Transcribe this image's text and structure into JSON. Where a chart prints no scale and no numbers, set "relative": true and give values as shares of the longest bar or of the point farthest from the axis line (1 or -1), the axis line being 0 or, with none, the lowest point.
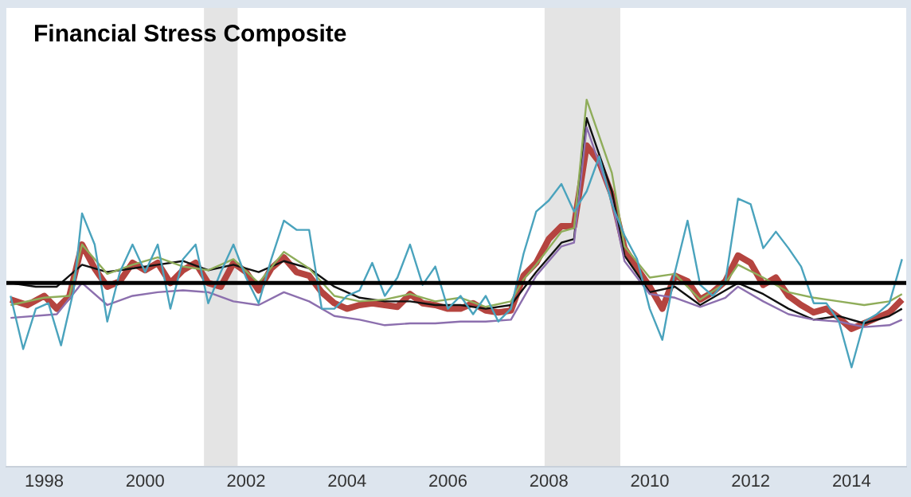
{
  "chart_data": {
    "type": "line",
    "title": "Financial Stress Composite",
    "relative": true,
    "legend": false,
    "marker": "none",
    "line_style": "solid",
    "xlim": [
      "1997-04",
      "2015-02"
    ],
    "xticks": [
      "1998",
      "2000",
      "2002",
      "2004",
      "2006",
      "2008",
      "2010",
      "2012",
      "2014"
    ],
    "bands": [
      {
        "axis": "x",
        "from": "2001-03",
        "to": "2001-11",
        "color": "#e4e4e4"
      },
      {
        "axis": "x",
        "from": "2007-12",
        "to": "2009-06",
        "color": "#e4e4e4"
      }
    ],
    "ref_lines": [
      {
        "axis": "y",
        "value": 0,
        "color": "#000000"
      }
    ],
    "series": [
      {
        "color": "#4aa3bd",
        "x": [
          "1997-05",
          "1997-08",
          "1997-11",
          "1998-02",
          "1998-05",
          "1998-08",
          "1998-10",
          "1999-01",
          "1999-04",
          "1999-07",
          "1999-10",
          "2000-01",
          "2000-04",
          "2000-07",
          "2000-10",
          "2001-01",
          "2001-04",
          "2001-07",
          "2001-10",
          "2002-01",
          "2002-04",
          "2002-07",
          "2002-10",
          "2003-01",
          "2003-04",
          "2003-07",
          "2003-10",
          "2004-01",
          "2004-04",
          "2004-07",
          "2004-10",
          "2005-01",
          "2005-04",
          "2005-07",
          "2005-10",
          "2006-01",
          "2006-04",
          "2006-07",
          "2006-10",
          "2007-01",
          "2007-04",
          "2007-07",
          "2007-10",
          "2008-01",
          "2008-04",
          "2008-07",
          "2008-10",
          "2009-01",
          "2009-04",
          "2009-07",
          "2009-10",
          "2010-01",
          "2010-04",
          "2010-07",
          "2010-10",
          "2011-01",
          "2011-04",
          "2011-07",
          "2011-10",
          "2012-01",
          "2012-04",
          "2012-07",
          "2012-10",
          "2013-01",
          "2013-04",
          "2013-07",
          "2013-10",
          "2014-01",
          "2014-04",
          "2014-07",
          "2014-10",
          "2015-01"
        ],
        "values": [
          -0.07,
          -0.36,
          -0.14,
          -0.11,
          -0.34,
          -0.04,
          0.38,
          0.21,
          -0.21,
          0.06,
          0.21,
          0.06,
          0.21,
          -0.14,
          0.13,
          0.21,
          -0.11,
          0.06,
          0.21,
          0.03,
          -0.11,
          0.13,
          0.34,
          0.29,
          0.29,
          -0.14,
          -0.14,
          -0.07,
          -0.04,
          0.11,
          -0.07,
          0.03,
          0.21,
          -0.01,
          0.09,
          -0.14,
          -0.07,
          -0.17,
          -0.07,
          -0.21,
          -0.14,
          0.16,
          0.39,
          0.45,
          0.54,
          0.39,
          0.5,
          0.69,
          0.43,
          0.26,
          0.13,
          -0.14,
          -0.31,
          0.06,
          0.34,
          -0.01,
          -0.07,
          0.01,
          0.46,
          0.43,
          0.19,
          0.28,
          0.19,
          0.09,
          -0.11,
          -0.11,
          -0.21,
          -0.46,
          -0.21,
          -0.17,
          -0.11,
          0.13
        ]
      },
      {
        "color": "#8fad5a",
        "x": [
          "1997-05",
          "1998-01",
          "1998-07",
          "1998-10",
          "1999-04",
          "1999-10",
          "2000-04",
          "2000-10",
          "2001-04",
          "2001-10",
          "2002-04",
          "2002-10",
          "2003-04",
          "2003-10",
          "2004-04",
          "2004-10",
          "2005-04",
          "2005-10",
          "2006-04",
          "2006-10",
          "2007-04",
          "2007-07",
          "2007-10",
          "2008-04",
          "2008-07",
          "2008-10",
          "2009-01",
          "2009-04",
          "2009-07",
          "2010-01",
          "2010-07",
          "2011-01",
          "2011-07",
          "2011-10",
          "2012-04",
          "2012-10",
          "2013-04",
          "2013-10",
          "2014-04",
          "2014-10",
          "2015-01"
        ],
        "values": [
          -0.12,
          -0.08,
          -0.07,
          0.21,
          0.05,
          0.1,
          0.14,
          0.09,
          0.07,
          0.13,
          0.0,
          0.17,
          0.08,
          -0.07,
          -0.1,
          -0.09,
          -0.06,
          -0.1,
          -0.08,
          -0.13,
          -0.1,
          0.02,
          0.1,
          0.28,
          0.3,
          1.0,
          0.8,
          0.6,
          0.2,
          0.03,
          0.05,
          -0.09,
          0.0,
          0.1,
          0.03,
          -0.05,
          -0.08,
          -0.1,
          -0.12,
          -0.1,
          -0.06
        ]
      },
      {
        "color": "#8c6fae",
        "x": [
          "1997-05",
          "1998-04",
          "1998-10",
          "1999-04",
          "1999-10",
          "2000-04",
          "2000-10",
          "2001-04",
          "2001-10",
          "2002-04",
          "2002-10",
          "2003-04",
          "2003-10",
          "2004-04",
          "2004-10",
          "2005-04",
          "2005-10",
          "2006-04",
          "2006-10",
          "2007-04",
          "2007-10",
          "2008-04",
          "2008-07",
          "2008-10",
          "2009-01",
          "2009-04",
          "2009-07",
          "2010-01",
          "2010-07",
          "2011-01",
          "2011-07",
          "2011-10",
          "2012-04",
          "2012-10",
          "2013-04",
          "2013-10",
          "2014-04",
          "2014-10",
          "2015-01"
        ],
        "values": [
          -0.19,
          -0.17,
          0.0,
          -0.12,
          -0.07,
          -0.05,
          -0.04,
          -0.05,
          -0.1,
          -0.12,
          -0.05,
          -0.1,
          -0.18,
          -0.2,
          -0.23,
          -0.22,
          -0.22,
          -0.21,
          -0.21,
          -0.2,
          0.04,
          0.2,
          0.22,
          0.85,
          0.65,
          0.45,
          0.12,
          -0.06,
          -0.08,
          -0.13,
          -0.08,
          -0.02,
          -0.1,
          -0.17,
          -0.2,
          -0.21,
          -0.24,
          -0.23,
          -0.2
        ]
      },
      {
        "color": "#111111",
        "x": [
          "1997-05",
          "1997-11",
          "1998-04",
          "1998-10",
          "1999-04",
          "1999-10",
          "2000-04",
          "2000-10",
          "2001-04",
          "2001-10",
          "2002-04",
          "2002-10",
          "2003-04",
          "2003-10",
          "2004-04",
          "2004-10",
          "2005-04",
          "2005-10",
          "2006-04",
          "2006-10",
          "2007-04",
          "2007-10",
          "2008-04",
          "2008-07",
          "2008-10",
          "2009-01",
          "2009-04",
          "2009-07",
          "2010-01",
          "2010-07",
          "2011-01",
          "2011-07",
          "2011-10",
          "2012-04",
          "2012-10",
          "2013-04",
          "2013-10",
          "2014-04",
          "2014-10",
          "2015-01"
        ],
        "values": [
          0.0,
          -0.02,
          -0.02,
          0.1,
          0.06,
          0.08,
          0.1,
          0.12,
          0.07,
          0.1,
          0.06,
          0.12,
          0.08,
          -0.02,
          -0.08,
          -0.1,
          -0.1,
          -0.12,
          -0.12,
          -0.14,
          -0.12,
          0.06,
          0.22,
          0.24,
          0.9,
          0.7,
          0.5,
          0.15,
          -0.05,
          -0.02,
          -0.12,
          -0.04,
          0.0,
          -0.06,
          -0.14,
          -0.2,
          -0.18,
          -0.22,
          -0.18,
          -0.14
        ]
      },
      {
        "color": "#b5443f",
        "x": [
          "1997-05",
          "1997-09",
          "1998-01",
          "1998-04",
          "1998-07",
          "1998-10",
          "1999-01",
          "1999-04",
          "1999-07",
          "1999-10",
          "2000-01",
          "2000-04",
          "2000-07",
          "2000-10",
          "2001-01",
          "2001-04",
          "2001-07",
          "2001-10",
          "2002-01",
          "2002-04",
          "2002-07",
          "2002-10",
          "2003-01",
          "2003-04",
          "2003-07",
          "2003-10",
          "2004-01",
          "2004-04",
          "2004-07",
          "2004-10",
          "2005-01",
          "2005-04",
          "2005-07",
          "2005-10",
          "2006-01",
          "2006-04",
          "2006-07",
          "2006-10",
          "2007-01",
          "2007-04",
          "2007-07",
          "2007-10",
          "2008-01",
          "2008-04",
          "2008-07",
          "2008-10",
          "2009-01",
          "2009-04",
          "2009-07",
          "2009-10",
          "2010-01",
          "2010-04",
          "2010-07",
          "2010-10",
          "2011-01",
          "2011-04",
          "2011-07",
          "2011-10",
          "2012-01",
          "2012-04",
          "2012-07",
          "2012-10",
          "2013-01",
          "2013-04",
          "2013-07",
          "2013-10",
          "2014-01",
          "2014-04",
          "2014-07",
          "2014-10",
          "2015-01"
        ],
        "values": [
          -0.09,
          -0.12,
          -0.07,
          -0.14,
          -0.07,
          0.21,
          0.08,
          -0.02,
          0.01,
          0.11,
          0.07,
          0.11,
          0.0,
          0.07,
          0.11,
          0.0,
          -0.02,
          0.11,
          0.06,
          -0.04,
          0.08,
          0.14,
          0.06,
          0.04,
          -0.05,
          -0.11,
          -0.14,
          -0.12,
          -0.11,
          -0.12,
          -0.13,
          -0.06,
          -0.11,
          -0.12,
          -0.14,
          -0.14,
          -0.11,
          -0.15,
          -0.16,
          -0.15,
          0.04,
          0.11,
          0.24,
          0.31,
          0.31,
          0.75,
          0.66,
          0.48,
          0.19,
          0.08,
          -0.02,
          -0.14,
          0.04,
          0.01,
          -0.09,
          -0.05,
          0.01,
          0.15,
          0.11,
          -0.01,
          0.03,
          -0.07,
          -0.12,
          -0.16,
          -0.14,
          -0.19,
          -0.25,
          -0.22,
          -0.19,
          -0.16,
          -0.09
        ]
      }
    ]
  }
}
